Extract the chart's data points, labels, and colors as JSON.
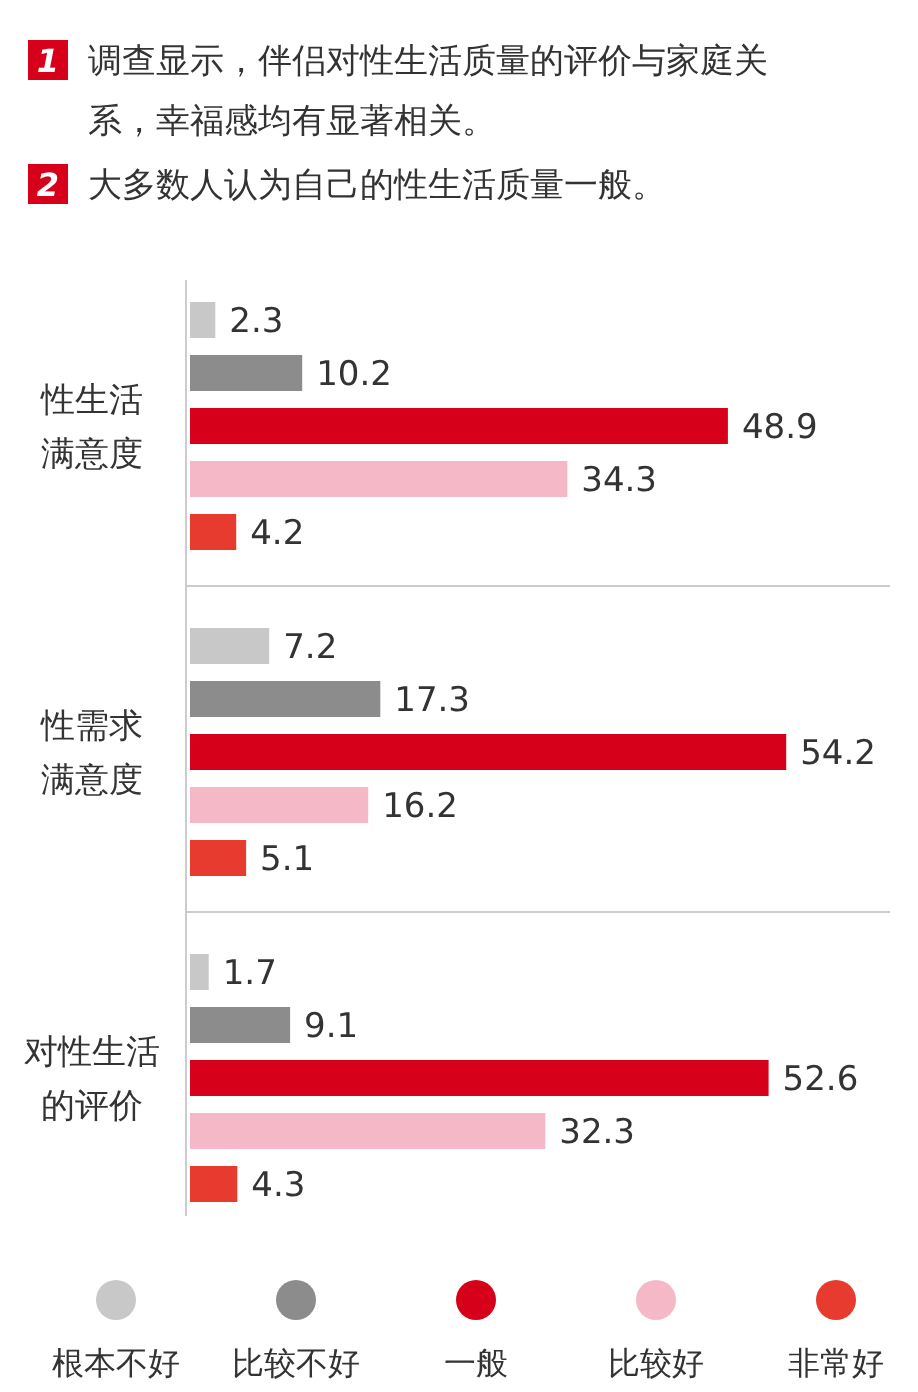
{
  "chart_data": {
    "type": "bar",
    "orientation": "horizontal",
    "data_labels": true,
    "legend": "bottom",
    "annotations": [
      "1",
      "调查显示，伴侣对性生活质量的评价与家庭关系，幸福感均有显著相关。",
      "2",
      "大多数人认为自己的性生活质量一般。"
    ],
    "categories": [
      "性生活满意度",
      "性需求满意度",
      "对性生活的评价"
    ],
    "series": [
      {
        "name": "根本不好",
        "color": "#c8c8c8",
        "values": [
          2.3,
          7.2,
          1.7
        ]
      },
      {
        "name": "比较不好",
        "color": "#8c8c8c",
        "values": [
          10.2,
          17.3,
          9.1
        ]
      },
      {
        "name": "一般",
        "color": "#d7001a",
        "values": [
          48.9,
          54.2,
          52.6
        ]
      },
      {
        "name": "比较好",
        "color": "#f5b8c6",
        "values": [
          34.3,
          16.2,
          32.3
        ]
      },
      {
        "name": "非常好",
        "color": "#e63b2e",
        "values": [
          4.2,
          5.1,
          4.3
        ]
      }
    ]
  }
}
